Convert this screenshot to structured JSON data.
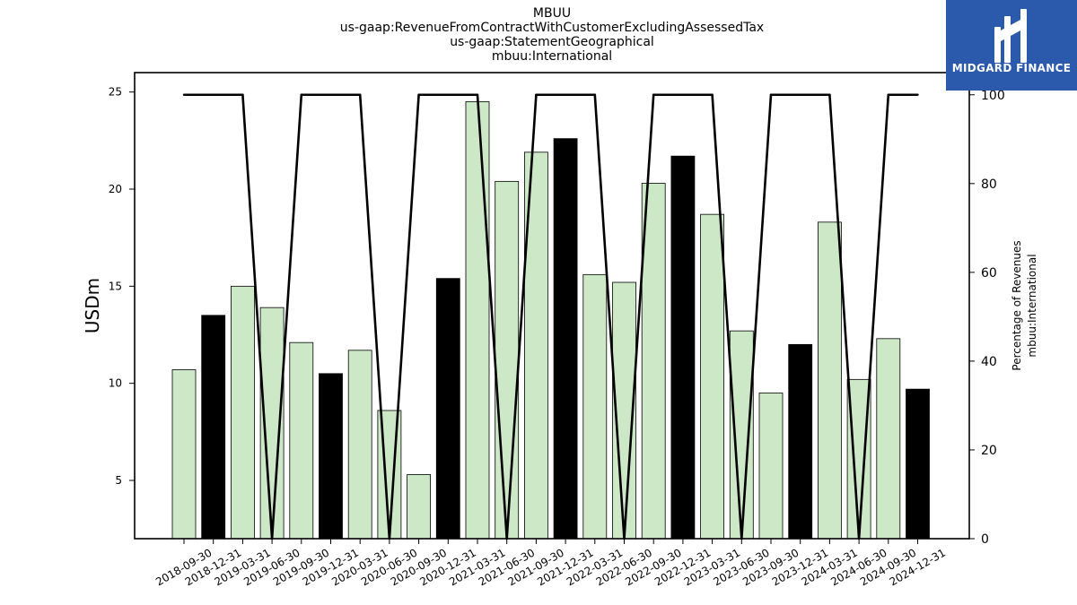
{
  "title_lines": [
    "MBUU",
    "us-gaap:RevenueFromContractWithCustomerExcludingAssessedTax",
    "us-gaap:StatementGeographical",
    "mbuu:International"
  ],
  "logo": {
    "text": "MIDGARD FINANCE",
    "background": "#2b5aad"
  },
  "chart_data": {
    "type": "bar",
    "categories": [
      "2018-09-30",
      "2018-12-31",
      "2019-03-31",
      "2019-06-30",
      "2019-09-30",
      "2019-12-31",
      "2020-03-31",
      "2020-06-30",
      "2020-09-30",
      "2020-12-31",
      "2021-03-31",
      "2021-06-30",
      "2021-09-30",
      "2021-12-31",
      "2022-03-31",
      "2022-06-30",
      "2022-09-30",
      "2022-12-31",
      "2023-03-31",
      "2023-06-30",
      "2023-09-30",
      "2023-12-31",
      "2024-03-31",
      "2024-06-30",
      "2024-09-30",
      "2024-12-31"
    ],
    "series": [
      {
        "type": "bar",
        "axis": "left",
        "values": [
          10.7,
          13.5,
          15.0,
          13.9,
          12.1,
          10.5,
          11.7,
          8.6,
          5.3,
          15.4,
          24.5,
          20.4,
          21.9,
          22.6,
          15.6,
          15.2,
          20.3,
          21.7,
          18.7,
          12.7,
          9.5,
          12.0,
          18.3,
          10.2,
          12.3,
          9.7
        ],
        "fiscal_year_end": [
          false,
          true,
          false,
          false,
          false,
          true,
          false,
          false,
          false,
          true,
          false,
          false,
          false,
          true,
          false,
          false,
          false,
          true,
          false,
          false,
          false,
          true,
          false,
          false,
          false,
          true
        ],
        "colors": {
          "quarter": "#cce8c6",
          "year_end": "#000000",
          "edge": "#000000"
        }
      },
      {
        "type": "line",
        "axis": "right",
        "values": [
          100,
          100,
          100,
          0,
          100,
          100,
          100,
          0,
          100,
          100,
          100,
          0,
          100,
          100,
          100,
          0,
          100,
          100,
          100,
          0,
          100,
          100,
          100,
          0,
          100,
          100
        ],
        "color": "#000000"
      }
    ],
    "ylabel": "USDm",
    "ylim": [
      2,
      26
    ],
    "yticks": [
      5,
      10,
      15,
      20,
      25
    ],
    "y2label_lines": [
      "Percentage of Revenues",
      "mbuu:International"
    ],
    "y2lim": [
      0,
      105
    ],
    "y2ticks": [
      0,
      20,
      40,
      60,
      80,
      100
    ],
    "grid": false,
    "xtick_rotation": 30
  }
}
